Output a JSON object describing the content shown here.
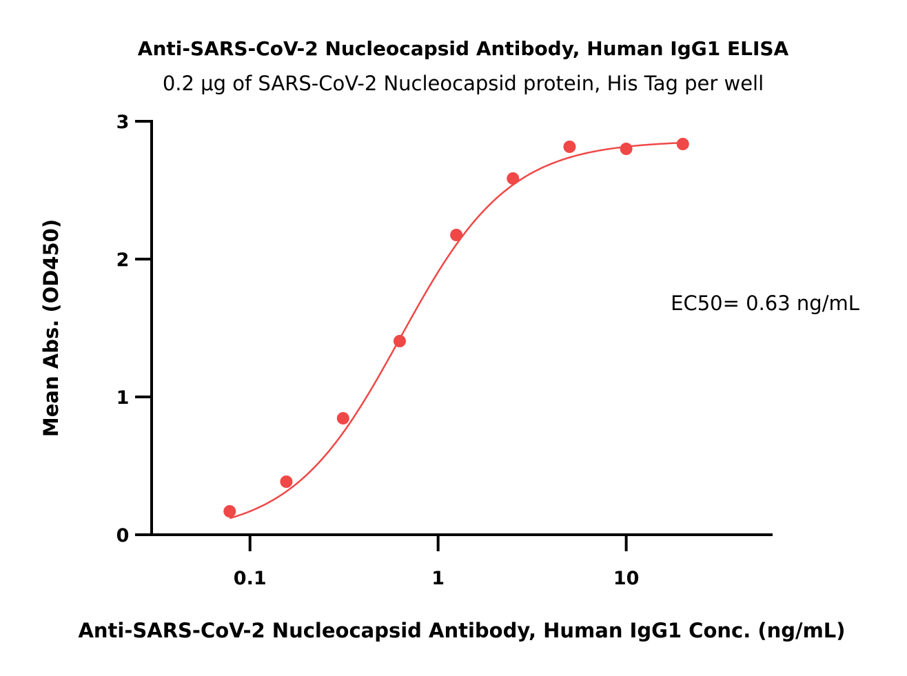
{
  "chart_data": {
    "type": "scatter",
    "title": "Anti-SARS-CoV-2 Nucleocapsid Antibody, Human IgG1 ELISA",
    "subtitle": "0.2 μg of SARS-CoV-2 Nucleocapsid protein, His Tag per well",
    "xlabel": "Anti-SARS-CoV-2 Nucleocapsid Antibody, Human IgG1 Conc. (ng/mL)",
    "ylabel": "Mean Abs. (OD450)",
    "x_scale": "log",
    "xlim": [
      0.03,
      60
    ],
    "ylim": [
      0,
      3
    ],
    "x_ticks": [
      0.1,
      1,
      10
    ],
    "x_tick_labels": [
      "0.1",
      "1",
      "10"
    ],
    "y_ticks": [
      0,
      1,
      2,
      3
    ],
    "y_tick_labels": [
      "0",
      "1",
      "2",
      "3"
    ],
    "grid": false,
    "series": [
      {
        "color": "#f04747",
        "x": [
          0.078,
          0.156,
          0.3125,
          0.625,
          1.25,
          2.5,
          5,
          10,
          20
        ],
        "y": [
          0.17,
          0.385,
          0.845,
          1.405,
          2.175,
          2.585,
          2.815,
          2.8,
          2.835
        ]
      }
    ],
    "fit_curve": {
      "model": "4PL",
      "bottom": 0.0,
      "top": 2.86,
      "ec50": 0.63,
      "hill": 1.5
    },
    "annotations": [
      {
        "text": "EC50= 0.63 ng/mL"
      }
    ]
  }
}
